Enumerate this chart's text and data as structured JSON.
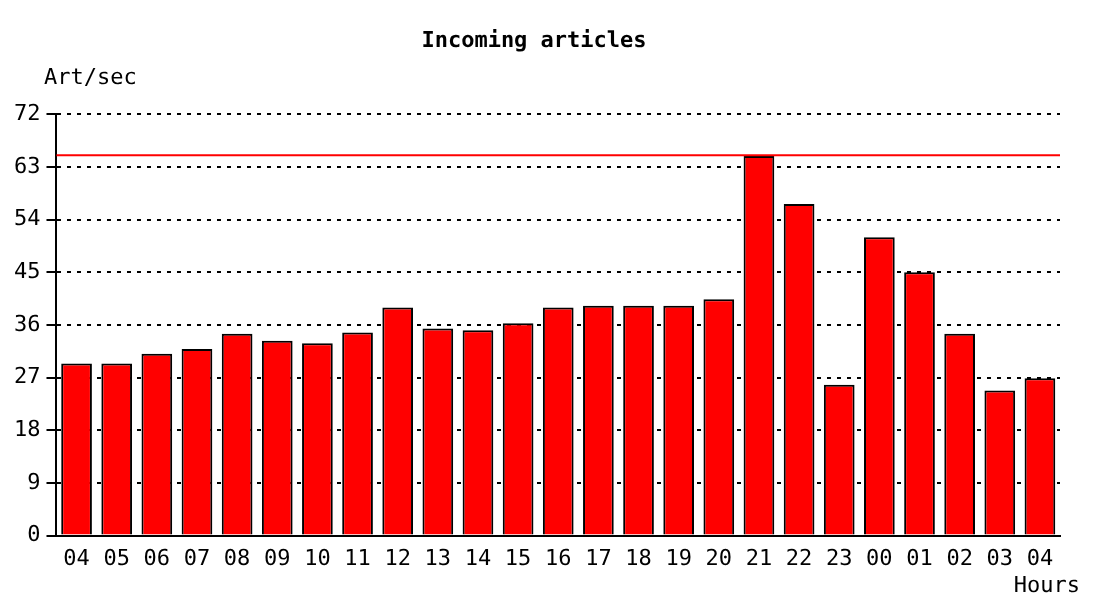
{
  "chart_data": {
    "type": "bar",
    "title": "Incoming articles",
    "ylabel": "Art/sec",
    "xlabel": "Hours",
    "categories": [
      "04",
      "05",
      "06",
      "07",
      "08",
      "09",
      "10",
      "11",
      "12",
      "13",
      "14",
      "15",
      "16",
      "17",
      "18",
      "19",
      "20",
      "21",
      "22",
      "23",
      "00",
      "01",
      "02",
      "03",
      "04"
    ],
    "values": [
      29.4,
      29.4,
      31.1,
      31.9,
      34.5,
      33.3,
      32.9,
      34.7,
      39.0,
      35.4,
      35.1,
      36.3,
      39.0,
      39.3,
      39.3,
      39.3,
      40.4,
      64.9,
      56.7,
      25.8,
      51.0,
      45.0,
      34.5,
      24.8,
      26.9
    ],
    "color": "#ff0000",
    "ylim": [
      0,
      72
    ],
    "yticks": [
      0,
      9,
      18,
      27,
      36,
      45,
      54,
      63,
      72
    ],
    "grid": "y",
    "ref_lines": [
      {
        "axis": "y",
        "value": 65,
        "color": "#ff0000"
      }
    ],
    "legend": false
  }
}
